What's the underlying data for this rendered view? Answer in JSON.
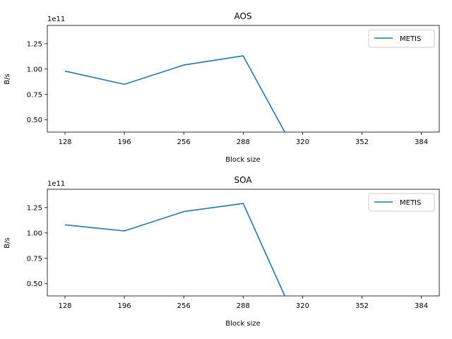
{
  "chart_data": [
    {
      "type": "line",
      "title": "AOS",
      "xlabel": "Block size",
      "ylabel": "B/s",
      "offset_text": "1e11",
      "x_categories": [
        "128",
        "196",
        "256",
        "288",
        "320",
        "352",
        "384"
      ],
      "y_ticks": [
        "0.50",
        "0.75",
        "1.00",
        "1.25"
      ],
      "ylim": [
        0.38,
        1.43
      ],
      "legend_position": "top-right",
      "series": [
        {
          "name": "METIS",
          "color": "#1f77b4",
          "values": [
            0.98,
            0.85,
            1.04,
            1.13,
            0.38
          ]
        }
      ],
      "series_x_index": [
        0,
        1,
        2,
        3,
        3.7
      ]
    },
    {
      "type": "line",
      "title": "SOA",
      "xlabel": "Block size",
      "ylabel": "B/s",
      "offset_text": "1e11",
      "x_categories": [
        "128",
        "196",
        "256",
        "288",
        "320",
        "352",
        "384"
      ],
      "y_ticks": [
        "0.50",
        "0.75",
        "1.00",
        "1.25"
      ],
      "ylim": [
        0.38,
        1.43
      ],
      "legend_position": "top-right",
      "series": [
        {
          "name": "METIS",
          "color": "#1f77b4",
          "values": [
            1.08,
            1.02,
            1.21,
            1.29,
            0.38
          ]
        }
      ],
      "series_x_index": [
        0,
        1,
        2,
        3,
        3.7
      ]
    }
  ]
}
